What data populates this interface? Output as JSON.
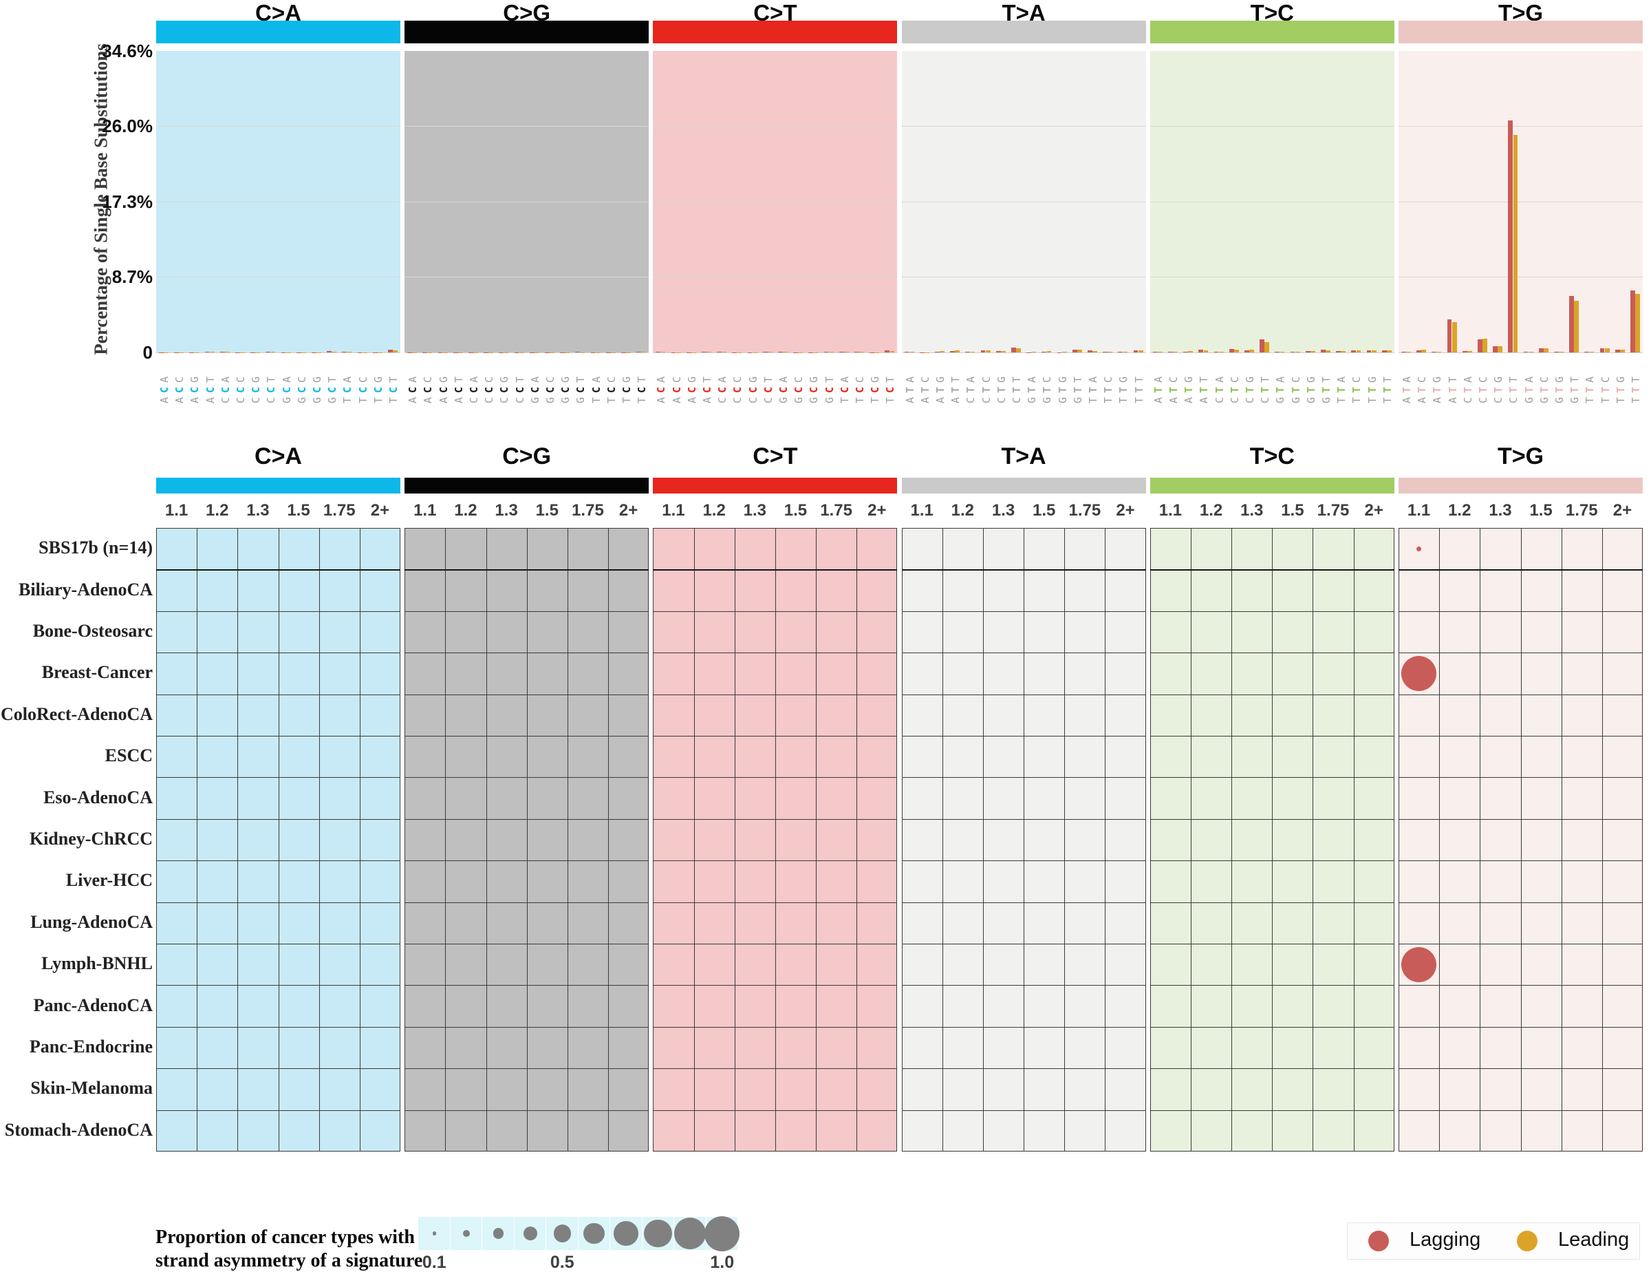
{
  "title": "SBS17b",
  "ylabel": "Percentage of Single Base Substitutions",
  "strand_legend": {
    "lagging": "Lagging Strand",
    "leading": "Leading Strand"
  },
  "colors": {
    "lagging": "#c85c58",
    "leading": "#dba428",
    "bubble_gray": "#808080",
    "matrix_line": "#3b3b3b",
    "size_legend_bg": "#dcf6fa"
  },
  "sections": [
    {
      "label": "C>A",
      "bar_color": "#0bb8e8",
      "panel_color": "#c8eaf6",
      "mid_letter_color": "#0bb8e8"
    },
    {
      "label": "C>G",
      "bar_color": "#050505",
      "panel_color": "#bfbfbf",
      "mid_letter_color": "#1a1a1a"
    },
    {
      "label": "C>T",
      "bar_color": "#e6261f",
      "panel_color": "#f5c8ca",
      "mid_letter_color": "#e6261f"
    },
    {
      "label": "T>A",
      "bar_color": "#cacaca",
      "panel_color": "#f1f1ef",
      "mid_letter_color": "#ababab"
    },
    {
      "label": "T>C",
      "bar_color": "#a1cd63",
      "panel_color": "#e8f1dd",
      "mid_letter_color": "#8fc353"
    },
    {
      "label": "T>G",
      "bar_color": "#ebc7c4",
      "panel_color": "#f9efec",
      "mid_letter_color": "#e5b5b1"
    }
  ],
  "chart_data": [
    {
      "type": "bar",
      "title": "SBS17b",
      "ylabel": "Percentage of Single Base Substitutions",
      "ylim": [
        0,
        34.6
      ],
      "yticks": [
        {
          "label": "34.6%",
          "value": 34.6
        },
        {
          "label": "26.0%",
          "value": 26.0
        },
        {
          "label": "17.3%",
          "value": 17.3
        },
        {
          "label": "8.7%",
          "value": 8.7
        },
        {
          "label": "0",
          "value": 0
        }
      ],
      "series_names": [
        "Lagging Strand",
        "Leading Strand"
      ],
      "legend_position": "top-right",
      "grid": true,
      "groups": [
        {
          "section": "C>A",
          "contexts": [
            "ACA",
            "ACC",
            "ACG",
            "ACT",
            "CCA",
            "CCC",
            "CCG",
            "CCT",
            "GCA",
            "GCC",
            "GCG",
            "GCT",
            "TCA",
            "TCC",
            "TCG",
            "TCT"
          ],
          "lagging": [
            0.02,
            0.02,
            0.01,
            0.05,
            0.06,
            0.03,
            0.01,
            0.1,
            0.03,
            0.02,
            0.01,
            0.12,
            0.04,
            0.03,
            0.01,
            0.28
          ],
          "leading": [
            0.03,
            0.02,
            0.01,
            0.04,
            0.05,
            0.03,
            0.01,
            0.08,
            0.03,
            0.02,
            0.01,
            0.1,
            0.04,
            0.03,
            0.01,
            0.22
          ]
        },
        {
          "section": "C>G",
          "contexts": [
            "ACA",
            "ACC",
            "ACG",
            "ACT",
            "CCA",
            "CCC",
            "CCG",
            "CCT",
            "GCA",
            "GCC",
            "GCG",
            "GCT",
            "TCA",
            "TCC",
            "TCG",
            "TCT"
          ],
          "lagging": [
            0.02,
            0.01,
            0.01,
            0.03,
            0.02,
            0.01,
            0.01,
            0.03,
            0.02,
            0.01,
            0.01,
            0.04,
            0.03,
            0.02,
            0.01,
            0.1
          ],
          "leading": [
            0.02,
            0.01,
            0.01,
            0.03,
            0.02,
            0.01,
            0.01,
            0.03,
            0.02,
            0.01,
            0.01,
            0.03,
            0.03,
            0.02,
            0.01,
            0.08
          ]
        },
        {
          "section": "C>T",
          "contexts": [
            "ACA",
            "ACC",
            "ACG",
            "ACT",
            "CCA",
            "CCC",
            "CCG",
            "CCT",
            "GCA",
            "GCC",
            "GCG",
            "GCT",
            "TCA",
            "TCC",
            "TCG",
            "TCT"
          ],
          "lagging": [
            0.05,
            0.03,
            0.02,
            0.05,
            0.04,
            0.03,
            0.02,
            0.06,
            0.04,
            0.03,
            0.02,
            0.06,
            0.05,
            0.04,
            0.02,
            0.2
          ],
          "leading": [
            0.05,
            0.03,
            0.02,
            0.05,
            0.04,
            0.03,
            0.02,
            0.06,
            0.04,
            0.03,
            0.02,
            0.06,
            0.05,
            0.04,
            0.02,
            0.16
          ]
        },
        {
          "section": "T>A",
          "contexts": [
            "ATA",
            "ATC",
            "ATG",
            "ATT",
            "CTA",
            "CTC",
            "CTG",
            "CTT",
            "GTA",
            "GTC",
            "GTG",
            "GTT",
            "TTA",
            "TTC",
            "TTG",
            "TTT"
          ],
          "lagging": [
            0.06,
            0.02,
            0.05,
            0.12,
            0.05,
            0.22,
            0.12,
            0.55,
            0.03,
            0.1,
            0.03,
            0.28,
            0.2,
            0.06,
            0.1,
            0.26
          ],
          "leading": [
            0.1,
            0.02,
            0.14,
            0.25,
            0.08,
            0.25,
            0.14,
            0.5,
            0.05,
            0.12,
            0.04,
            0.32,
            0.16,
            0.06,
            0.1,
            0.22
          ]
        },
        {
          "section": "T>C",
          "contexts": [
            "ATA",
            "ATC",
            "ATG",
            "ATT",
            "CTA",
            "CTC",
            "CTG",
            "CTT",
            "GTA",
            "GTC",
            "GTG",
            "GTT",
            "TTA",
            "TTC",
            "TTG",
            "TTT"
          ],
          "lagging": [
            0.05,
            0.05,
            0.1,
            0.28,
            0.06,
            0.36,
            0.26,
            1.5,
            0.09,
            0.1,
            0.15,
            0.3,
            0.14,
            0.2,
            0.22,
            0.26
          ],
          "leading": [
            0.05,
            0.05,
            0.12,
            0.24,
            0.06,
            0.3,
            0.3,
            1.2,
            0.09,
            0.1,
            0.15,
            0.26,
            0.12,
            0.2,
            0.26,
            0.24
          ]
        },
        {
          "section": "T>G",
          "contexts": [
            "ATA",
            "ATC",
            "ATG",
            "ATT",
            "CTA",
            "CTC",
            "CTG",
            "CTT",
            "GTA",
            "GTC",
            "GTG",
            "GTT",
            "TTA",
            "TTC",
            "TTG",
            "TTT"
          ],
          "lagging": [
            0.08,
            0.25,
            0.06,
            3.8,
            0.15,
            1.5,
            0.75,
            26.6,
            0.04,
            0.45,
            0.1,
            6.5,
            0.1,
            0.45,
            0.32,
            7.1
          ],
          "leading": [
            0.1,
            0.3,
            0.06,
            3.5,
            0.15,
            1.55,
            0.75,
            25.0,
            0.04,
            0.45,
            0.1,
            5.9,
            0.1,
            0.5,
            0.32,
            6.7
          ]
        }
      ]
    },
    {
      "type": "scatter",
      "subtype": "bubble-matrix",
      "ratio_bins": [
        "1.1",
        "1.2",
        "1.3",
        "1.5",
        "1.75",
        "2+"
      ],
      "substitution_sections": [
        "C>A",
        "C>G",
        "C>T",
        "T>A",
        "T>C",
        "T>G"
      ],
      "rows": [
        "SBS17b (n=14)",
        "Biliary-AdenoCA",
        "Bone-Osteosarc",
        "Breast-Cancer",
        "ColoRect-AdenoCA",
        "ESCC",
        "Eso-AdenoCA",
        "Kidney-ChRCC",
        "Liver-HCC",
        "Lung-AdenoCA",
        "Lymph-BNHL",
        "Panc-AdenoCA",
        "Panc-Endocrine",
        "Skin-Melanoma",
        "Stomach-AdenoCA"
      ],
      "points": [
        {
          "row": "SBS17b (n=14)",
          "substitution": "T>G",
          "ratio": "1.1",
          "strand": "Lagging",
          "proportion": 0.14
        },
        {
          "row": "Breast-Cancer",
          "substitution": "T>G",
          "ratio": "1.1",
          "strand": "Lagging",
          "proportion": 1.0
        },
        {
          "row": "Lymph-BNHL",
          "substitution": "T>G",
          "ratio": "1.1",
          "strand": "Lagging",
          "proportion": 1.0
        }
      ]
    }
  ],
  "size_legend": {
    "label_line1": "Proportion of cancer types with",
    "label_line2": "strand asymmetry of a signature",
    "values": [
      0.1,
      0.2,
      0.3,
      0.4,
      0.5,
      0.6,
      0.7,
      0.8,
      0.9,
      1.0
    ],
    "tick_labels": [
      {
        "text": "0.1",
        "index": 0
      },
      {
        "text": "0.5",
        "index": 4
      },
      {
        "text": "1.0",
        "index": 9
      }
    ]
  },
  "strand_dot_legend": {
    "lagging": "Lagging",
    "leading": "Leading"
  }
}
